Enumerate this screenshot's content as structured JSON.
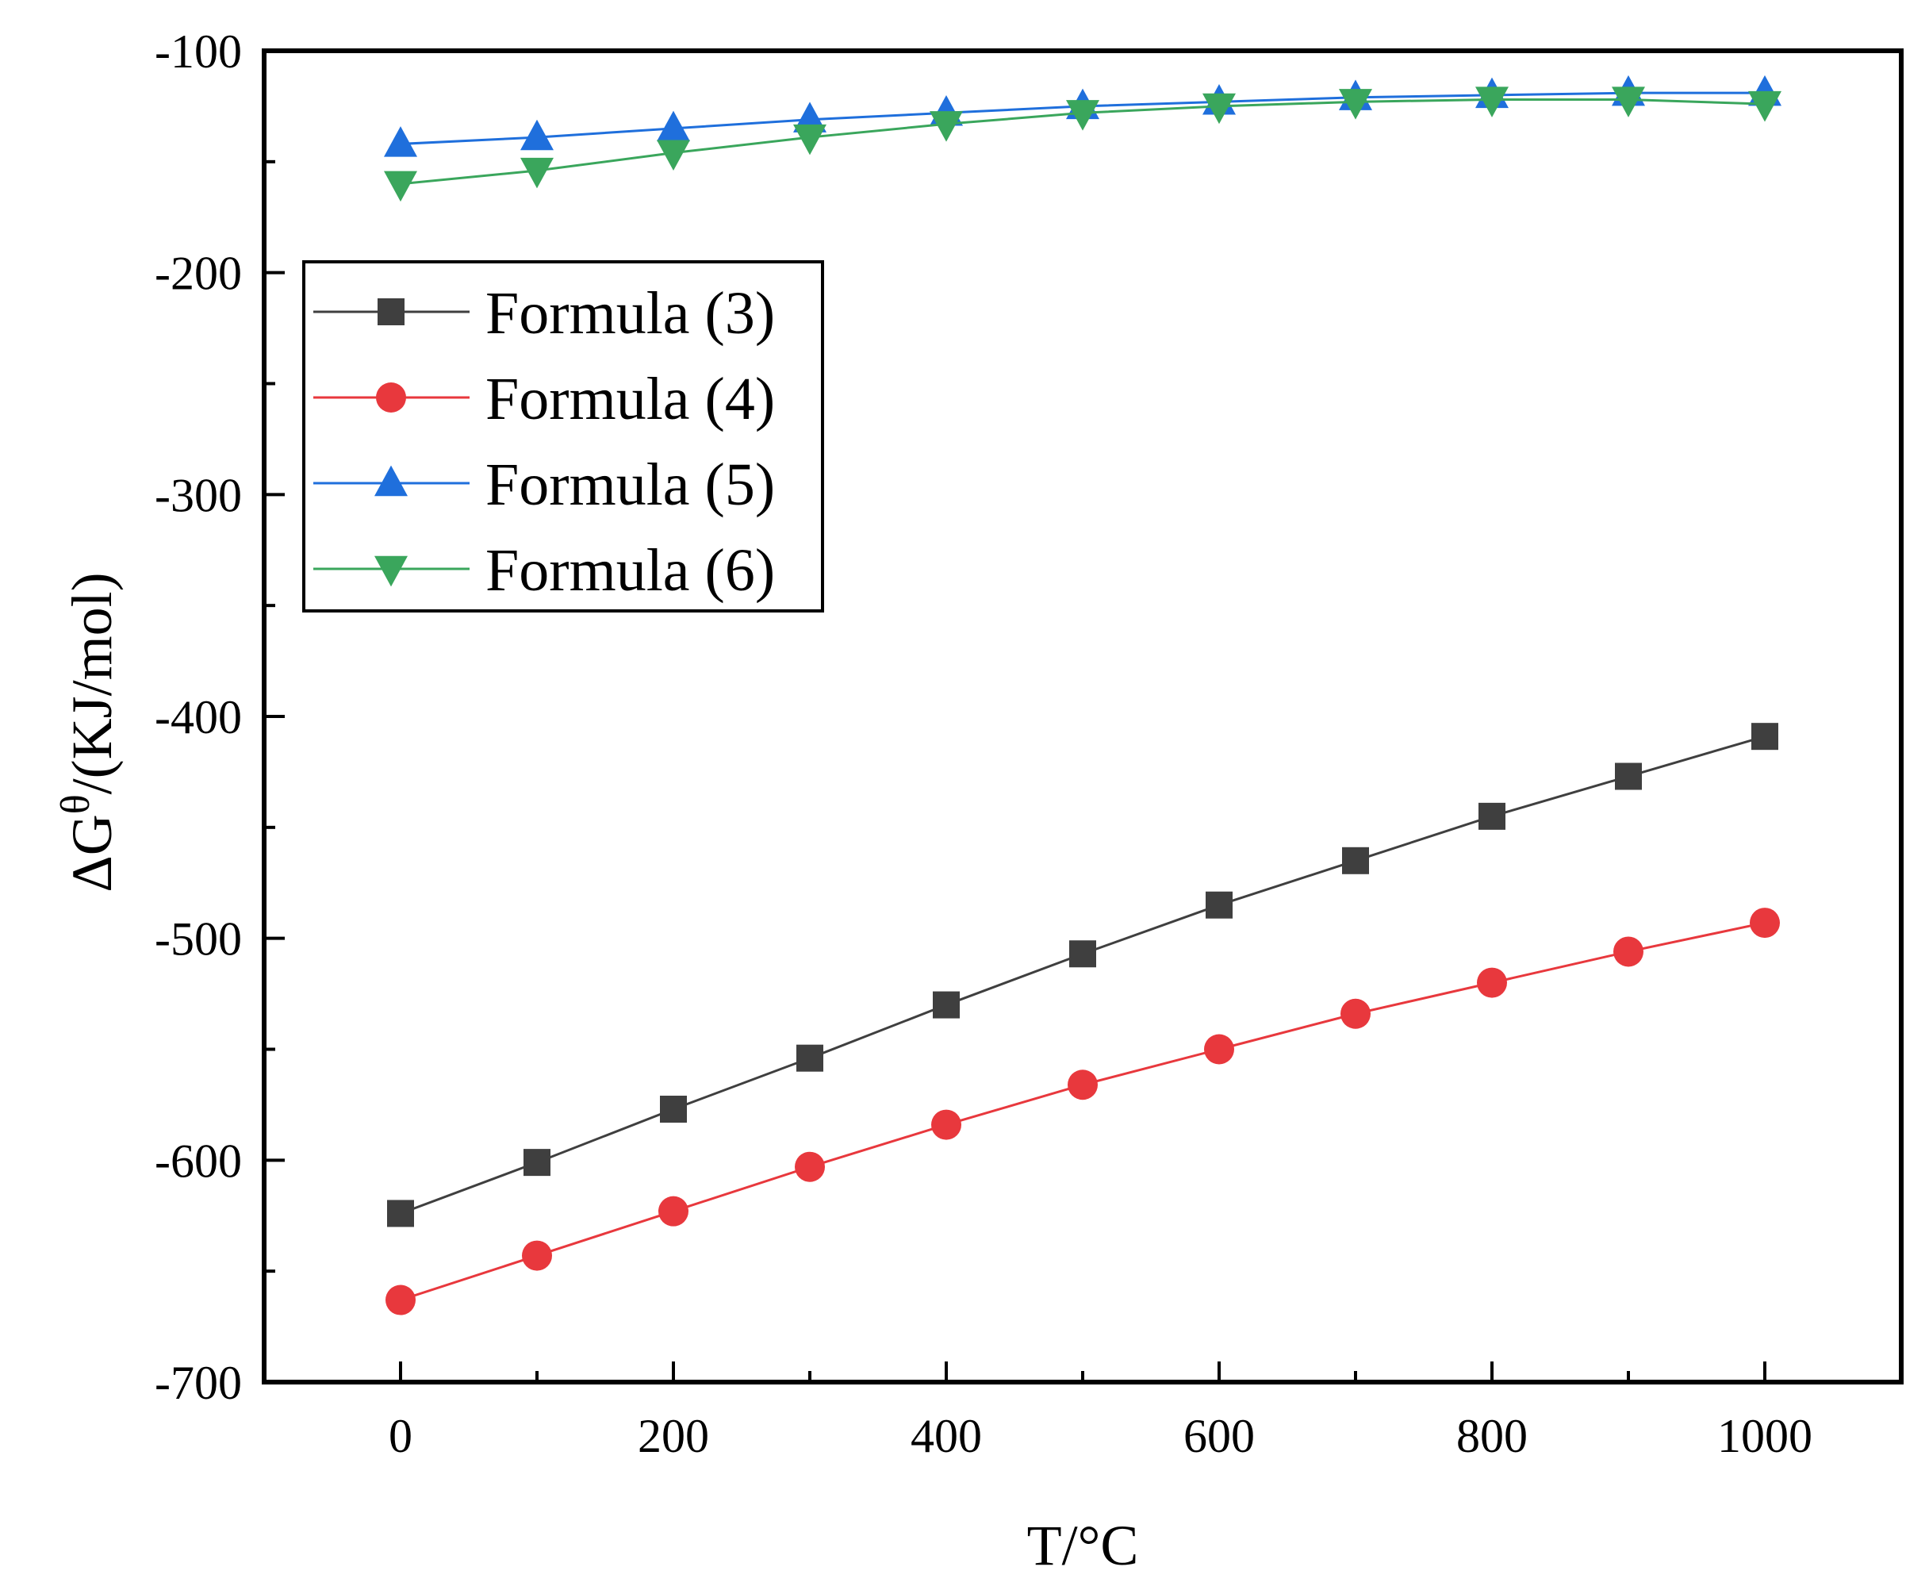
{
  "chart_data": {
    "type": "line",
    "title": "",
    "xlabel": "T/°C",
    "ylabel": {
      "prefix": "ΔG",
      "superscript": "θ",
      "suffix": "/(KJ/mol)"
    },
    "xlim": [
      -100,
      1100
    ],
    "ylim": [
      -700,
      -100
    ],
    "xticks": [
      0,
      200,
      400,
      600,
      800,
      1000
    ],
    "yticks": [
      -100,
      -200,
      -300,
      -400,
      -500,
      -600,
      -700
    ],
    "x": [
      0,
      100,
      200,
      300,
      400,
      500,
      600,
      700,
      800,
      900,
      1000
    ],
    "legend_position": "upper-left",
    "series": [
      {
        "name": "Formula (3)",
        "marker": "square",
        "color": "#3f3f3f",
        "values": [
          -624,
          -601,
          -577,
          -554,
          -530,
          -507,
          -485,
          -465,
          -445,
          -427,
          -409
        ]
      },
      {
        "name": "Formula (4)",
        "marker": "circle",
        "color": "#e8383d",
        "values": [
          -663,
          -643,
          -623,
          -603,
          -584,
          -566,
          -550,
          -534,
          -520,
          -506,
          -493
        ]
      },
      {
        "name": "Formula (5)",
        "marker": "triangle-up",
        "color": "#1f6fdc",
        "values": [
          -142,
          -139,
          -135,
          -131,
          -128,
          -125,
          -123,
          -121,
          -120,
          -119,
          -119
        ]
      },
      {
        "name": "Formula (6)",
        "marker": "triangle-down",
        "color": "#3aa65c",
        "values": [
          -160,
          -154,
          -146,
          -139,
          -133,
          -128,
          -125,
          -123,
          -122,
          -122,
          -124
        ]
      }
    ]
  }
}
